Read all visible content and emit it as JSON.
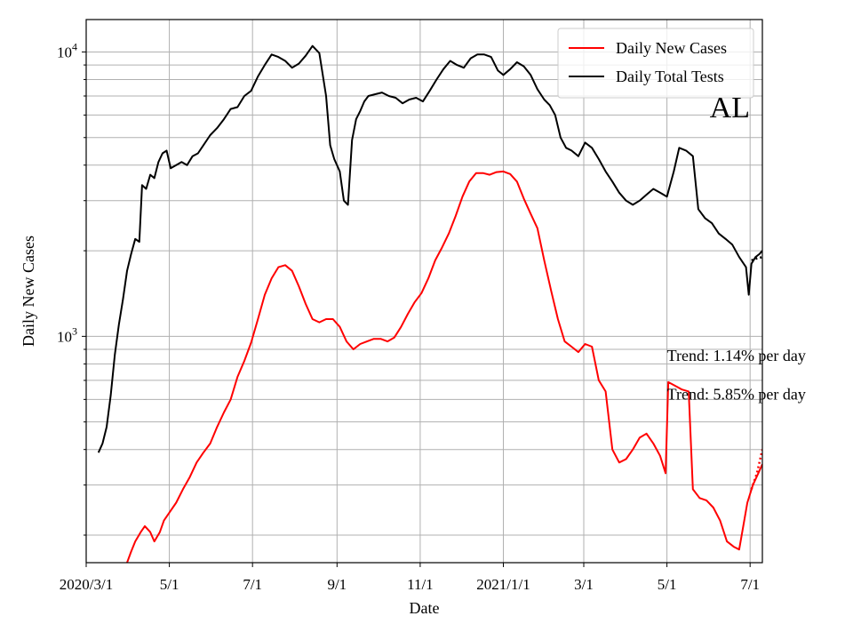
{
  "chart_data": {
    "type": "line",
    "xlabel": "Date",
    "ylabel": "Daily New Cases",
    "yscale": "log",
    "xlim": [
      "2020-03-01",
      "2021-07-10"
    ],
    "ylim": [
      160,
      13000
    ],
    "grid": true,
    "legend_position": "top-right",
    "x_ticks": [
      {
        "date": "2020-03-01",
        "label": "2020/3/1"
      },
      {
        "date": "2020-05-01",
        "label": "5/1"
      },
      {
        "date": "2020-07-01",
        "label": "7/1"
      },
      {
        "date": "2020-09-01",
        "label": "9/1"
      },
      {
        "date": "2020-11-01",
        "label": "11/1"
      },
      {
        "date": "2021-01-01",
        "label": "2021/1/1"
      },
      {
        "date": "2021-03-01",
        "label": "3/1"
      },
      {
        "date": "2021-05-01",
        "label": "5/1"
      },
      {
        "date": "2021-07-01",
        "label": "7/1"
      }
    ],
    "y_major_ticks": [
      {
        "value": 1000,
        "base": "10",
        "exp": "3"
      },
      {
        "value": 10000,
        "base": "10",
        "exp": "4"
      }
    ],
    "y_minor_ticks": [
      200,
      300,
      400,
      500,
      600,
      700,
      800,
      900,
      2000,
      3000,
      4000,
      5000,
      6000,
      7000,
      8000,
      9000
    ],
    "series": [
      {
        "name": "Daily New Cases",
        "color": "#ff0000",
        "points": [
          [
            "2020-03-31",
            160
          ],
          [
            "2020-04-03",
            175
          ],
          [
            "2020-04-06",
            190
          ],
          [
            "2020-04-10",
            205
          ],
          [
            "2020-04-13",
            215
          ],
          [
            "2020-04-17",
            205
          ],
          [
            "2020-04-20",
            190
          ],
          [
            "2020-04-24",
            205
          ],
          [
            "2020-04-27",
            225
          ],
          [
            "2020-05-01",
            240
          ],
          [
            "2020-05-06",
            260
          ],
          [
            "2020-05-11",
            290
          ],
          [
            "2020-05-16",
            320
          ],
          [
            "2020-05-21",
            360
          ],
          [
            "2020-05-26",
            390
          ],
          [
            "2020-05-31",
            420
          ],
          [
            "2020-06-05",
            480
          ],
          [
            "2020-06-10",
            540
          ],
          [
            "2020-06-15",
            600
          ],
          [
            "2020-06-20",
            720
          ],
          [
            "2020-06-25",
            820
          ],
          [
            "2020-06-30",
            950
          ],
          [
            "2020-07-05",
            1150
          ],
          [
            "2020-07-10",
            1400
          ],
          [
            "2020-07-15",
            1600
          ],
          [
            "2020-07-20",
            1750
          ],
          [
            "2020-07-25",
            1780
          ],
          [
            "2020-07-30",
            1700
          ],
          [
            "2020-08-04",
            1500
          ],
          [
            "2020-08-09",
            1300
          ],
          [
            "2020-08-14",
            1150
          ],
          [
            "2020-08-19",
            1120
          ],
          [
            "2020-08-24",
            1150
          ],
          [
            "2020-08-29",
            1150
          ],
          [
            "2020-09-03",
            1080
          ],
          [
            "2020-09-08",
            960
          ],
          [
            "2020-09-13",
            900
          ],
          [
            "2020-09-18",
            940
          ],
          [
            "2020-09-23",
            960
          ],
          [
            "2020-09-28",
            980
          ],
          [
            "2020-10-03",
            980
          ],
          [
            "2020-10-08",
            960
          ],
          [
            "2020-10-13",
            990
          ],
          [
            "2020-10-18",
            1080
          ],
          [
            "2020-10-23",
            1200
          ],
          [
            "2020-10-28",
            1320
          ],
          [
            "2020-11-02",
            1420
          ],
          [
            "2020-11-07",
            1600
          ],
          [
            "2020-11-12",
            1850
          ],
          [
            "2020-11-17",
            2050
          ],
          [
            "2020-11-22",
            2300
          ],
          [
            "2020-11-27",
            2650
          ],
          [
            "2020-12-02",
            3100
          ],
          [
            "2020-12-07",
            3500
          ],
          [
            "2020-12-12",
            3750
          ],
          [
            "2020-12-17",
            3750
          ],
          [
            "2020-12-22",
            3700
          ],
          [
            "2020-12-27",
            3780
          ],
          [
            "2021-01-01",
            3800
          ],
          [
            "2021-01-06",
            3720
          ],
          [
            "2021-01-11",
            3500
          ],
          [
            "2021-01-16",
            3050
          ],
          [
            "2021-01-21",
            2700
          ],
          [
            "2021-01-26",
            2400
          ],
          [
            "2021-01-31",
            1850
          ],
          [
            "2021-02-05",
            1450
          ],
          [
            "2021-02-10",
            1150
          ],
          [
            "2021-02-15",
            960
          ],
          [
            "2021-02-20",
            920
          ],
          [
            "2021-02-25",
            880
          ],
          [
            "2021-03-02",
            940
          ],
          [
            "2021-03-07",
            920
          ],
          [
            "2021-03-12",
            700
          ],
          [
            "2021-03-17",
            640
          ],
          [
            "2021-03-22",
            400
          ],
          [
            "2021-03-27",
            360
          ],
          [
            "2021-04-01",
            370
          ],
          [
            "2021-04-06",
            400
          ],
          [
            "2021-04-11",
            440
          ],
          [
            "2021-04-16",
            455
          ],
          [
            "2021-04-21",
            420
          ],
          [
            "2021-04-26",
            380
          ],
          [
            "2021-04-30",
            330
          ],
          [
            "2021-05-02",
            690
          ],
          [
            "2021-05-07",
            670
          ],
          [
            "2021-05-12",
            650
          ],
          [
            "2021-05-17",
            640
          ],
          [
            "2021-05-20",
            290
          ],
          [
            "2021-05-25",
            270
          ],
          [
            "2021-05-30",
            265
          ],
          [
            "2021-06-04",
            250
          ],
          [
            "2021-06-09",
            225
          ],
          [
            "2021-06-14",
            190
          ],
          [
            "2021-06-19",
            182
          ],
          [
            "2021-06-23",
            178
          ],
          [
            "2021-06-26",
            215
          ],
          [
            "2021-06-29",
            260
          ],
          [
            "2021-07-03",
            300
          ],
          [
            "2021-07-07",
            330
          ],
          [
            "2021-07-10",
            355
          ]
        ]
      },
      {
        "name": "Daily Total Tests",
        "color": "#000000",
        "points": [
          [
            "2020-03-10",
            390
          ],
          [
            "2020-03-13",
            420
          ],
          [
            "2020-03-16",
            480
          ],
          [
            "2020-03-19",
            620
          ],
          [
            "2020-03-22",
            860
          ],
          [
            "2020-03-25",
            1100
          ],
          [
            "2020-03-28",
            1350
          ],
          [
            "2020-03-31",
            1700
          ],
          [
            "2020-04-03",
            1950
          ],
          [
            "2020-04-06",
            2200
          ],
          [
            "2020-04-09",
            2150
          ],
          [
            "2020-04-11",
            3400
          ],
          [
            "2020-04-14",
            3300
          ],
          [
            "2020-04-17",
            3700
          ],
          [
            "2020-04-20",
            3600
          ],
          [
            "2020-04-23",
            4100
          ],
          [
            "2020-04-26",
            4400
          ],
          [
            "2020-04-29",
            4500
          ],
          [
            "2020-05-02",
            3900
          ],
          [
            "2020-05-06",
            4000
          ],
          [
            "2020-05-10",
            4100
          ],
          [
            "2020-05-14",
            4000
          ],
          [
            "2020-05-18",
            4300
          ],
          [
            "2020-05-22",
            4400
          ],
          [
            "2020-05-26",
            4700
          ],
          [
            "2020-05-31",
            5100
          ],
          [
            "2020-06-05",
            5400
          ],
          [
            "2020-06-10",
            5800
          ],
          [
            "2020-06-15",
            6300
          ],
          [
            "2020-06-20",
            6400
          ],
          [
            "2020-06-25",
            7000
          ],
          [
            "2020-06-30",
            7300
          ],
          [
            "2020-07-05",
            8200
          ],
          [
            "2020-07-10",
            9000
          ],
          [
            "2020-07-15",
            9800
          ],
          [
            "2020-07-20",
            9600
          ],
          [
            "2020-07-25",
            9300
          ],
          [
            "2020-07-30",
            8800
          ],
          [
            "2020-08-04",
            9100
          ],
          [
            "2020-08-09",
            9700
          ],
          [
            "2020-08-14",
            10500
          ],
          [
            "2020-08-19",
            9900
          ],
          [
            "2020-08-24",
            7000
          ],
          [
            "2020-08-27",
            4700
          ],
          [
            "2020-08-30",
            4200
          ],
          [
            "2020-09-03",
            3800
          ],
          [
            "2020-09-06",
            3000
          ],
          [
            "2020-09-09",
            2900
          ],
          [
            "2020-09-12",
            4900
          ],
          [
            "2020-09-15",
            5800
          ],
          [
            "2020-09-18",
            6200
          ],
          [
            "2020-09-21",
            6700
          ],
          [
            "2020-09-24",
            7000
          ],
          [
            "2020-09-29",
            7100
          ],
          [
            "2020-10-04",
            7200
          ],
          [
            "2020-10-09",
            7000
          ],
          [
            "2020-10-14",
            6900
          ],
          [
            "2020-10-19",
            6600
          ],
          [
            "2020-10-24",
            6800
          ],
          [
            "2020-10-29",
            6900
          ],
          [
            "2020-11-03",
            6700
          ],
          [
            "2020-11-08",
            7300
          ],
          [
            "2020-11-13",
            8000
          ],
          [
            "2020-11-18",
            8700
          ],
          [
            "2020-11-23",
            9300
          ],
          [
            "2020-11-28",
            9000
          ],
          [
            "2020-12-03",
            8800
          ],
          [
            "2020-12-08",
            9500
          ],
          [
            "2020-12-13",
            9800
          ],
          [
            "2020-12-18",
            9800
          ],
          [
            "2020-12-23",
            9600
          ],
          [
            "2020-12-28",
            8600
          ],
          [
            "2021-01-01",
            8300
          ],
          [
            "2021-01-06",
            8700
          ],
          [
            "2021-01-11",
            9200
          ],
          [
            "2021-01-16",
            8900
          ],
          [
            "2021-01-21",
            8300
          ],
          [
            "2021-01-26",
            7400
          ],
          [
            "2021-01-31",
            6800
          ],
          [
            "2021-02-04",
            6500
          ],
          [
            "2021-02-08",
            6000
          ],
          [
            "2021-02-12",
            5000
          ],
          [
            "2021-02-16",
            4600
          ],
          [
            "2021-02-20",
            4500
          ],
          [
            "2021-02-25",
            4300
          ],
          [
            "2021-03-02",
            4800
          ],
          [
            "2021-03-07",
            4600
          ],
          [
            "2021-03-12",
            4200
          ],
          [
            "2021-03-17",
            3800
          ],
          [
            "2021-03-22",
            3500
          ],
          [
            "2021-03-27",
            3200
          ],
          [
            "2021-04-01",
            3000
          ],
          [
            "2021-04-06",
            2900
          ],
          [
            "2021-04-11",
            3000
          ],
          [
            "2021-04-16",
            3150
          ],
          [
            "2021-04-21",
            3300
          ],
          [
            "2021-04-26",
            3200
          ],
          [
            "2021-05-01",
            3100
          ],
          [
            "2021-05-06",
            3800
          ],
          [
            "2021-05-10",
            4600
          ],
          [
            "2021-05-15",
            4500
          ],
          [
            "2021-05-20",
            4300
          ],
          [
            "2021-05-24",
            2800
          ],
          [
            "2021-05-29",
            2600
          ],
          [
            "2021-06-03",
            2500
          ],
          [
            "2021-06-08",
            2300
          ],
          [
            "2021-06-13",
            2200
          ],
          [
            "2021-06-18",
            2100
          ],
          [
            "2021-06-23",
            1900
          ],
          [
            "2021-06-28",
            1750
          ],
          [
            "2021-06-30",
            1400
          ],
          [
            "2021-07-02",
            1800
          ],
          [
            "2021-07-05",
            1900
          ],
          [
            "2021-07-08",
            1950
          ],
          [
            "2021-07-10",
            2000
          ]
        ]
      },
      {
        "name": "",
        "color": "#ff0000",
        "style": "dotted",
        "points": [
          [
            "2021-07-02",
            290
          ],
          [
            "2021-07-06",
            330
          ],
          [
            "2021-07-10",
            400
          ]
        ]
      },
      {
        "name": "",
        "color": "#000000",
        "style": "dotted",
        "points": [
          [
            "2021-07-02",
            1850
          ],
          [
            "2021-07-06",
            1880
          ],
          [
            "2021-07-10",
            1900
          ]
        ]
      }
    ],
    "annotations": [
      {
        "text": "Trend: 1.14% per day",
        "x": "2021-05-01",
        "y": 820
      },
      {
        "text": "Trend: 5.85% per day",
        "x": "2021-05-01",
        "y": 600
      }
    ],
    "state_label": "AL"
  }
}
